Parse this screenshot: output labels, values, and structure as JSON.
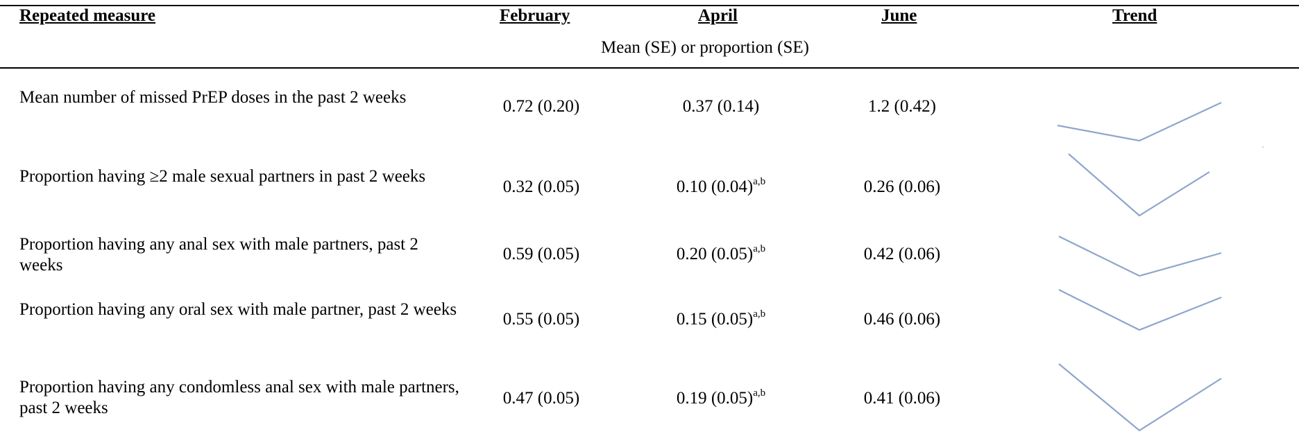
{
  "header": {
    "col_measure": "Repeated measure",
    "col_feb": "February",
    "col_apr": "April",
    "col_jun": "June",
    "col_trend": "Trend",
    "subheader": "Mean (SE) or proportion (SE)"
  },
  "rows": [
    {
      "measure": "Mean number of missed PrEP doses in the past 2 weeks",
      "feb": "0.72 (0.20)",
      "apr": "0.37 (0.14)",
      "apr_sup": "",
      "jun": "1.2 (0.42)"
    },
    {
      "measure": "Proportion having ≥2 male sexual partners in past 2 weeks",
      "feb": "0.32 (0.05)",
      "apr": "0.10 (0.04)",
      "apr_sup": "a,b",
      "jun": "0.26 (0.06)"
    },
    {
      "measure": "Proportion having any anal sex with male partners, past 2 weeks",
      "feb": "0.59 (0.05)",
      "apr": "0.20 (0.05)",
      "apr_sup": "a,b",
      "jun": "0.42 (0.06)"
    },
    {
      "measure": "Proportion having any oral sex with male partner, past 2 weeks",
      "feb": "0.55 (0.05)",
      "apr": "0.15 (0.05)",
      "apr_sup": "a,b",
      "jun": "0.46 (0.06)"
    },
    {
      "measure": "Proportion having any condomless anal sex with male partners, past 2 weeks",
      "feb": "0.47 (0.05)",
      "apr": "0.19 (0.05)",
      "apr_sup": "a,b",
      "jun": "0.41 (0.06)"
    }
  ],
  "colors": {
    "trend_line": "#8ea5cc",
    "rule": "#000000"
  }
}
